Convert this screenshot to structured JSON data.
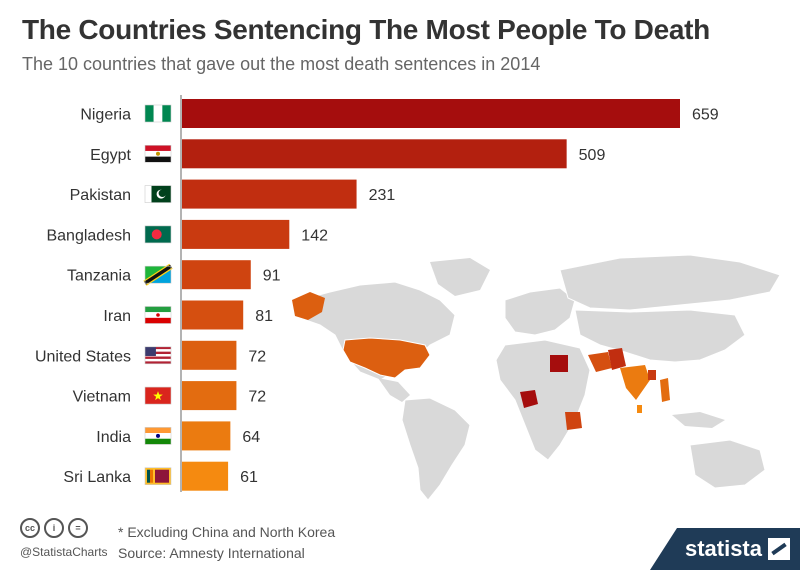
{
  "header": {
    "title": "The Countries Sentencing The Most People To Death",
    "subtitle": "The 10 countries that gave out the most death sentences in 2014"
  },
  "chart_data": {
    "type": "bar",
    "orientation": "horizontal",
    "title": "The Countries Sentencing The Most People To Death",
    "subtitle": "The 10 countries that gave out the most death sentences in 2014",
    "categories": [
      "Nigeria",
      "Egypt",
      "Pakistan",
      "Bangladesh",
      "Tanzania",
      "Iran",
      "United States",
      "Vietnam",
      "India",
      "Sri Lanka"
    ],
    "values": [
      659,
      509,
      231,
      142,
      91,
      81,
      72,
      72,
      64,
      61
    ],
    "colors": [
      "#a50d0d",
      "#b3200f",
      "#c12e10",
      "#c93a10",
      "#cf4410",
      "#d54f10",
      "#dc5f10",
      "#e36c10",
      "#eb7b10",
      "#f58a10"
    ],
    "xlabel": "",
    "ylabel": "",
    "xlim": [
      0,
      659
    ]
  },
  "flags": [
    "nigeria-flag-icon",
    "egypt-flag-icon",
    "pakistan-flag-icon",
    "bangladesh-flag-icon",
    "tanzania-flag-icon",
    "iran-flag-icon",
    "united-states-flag-icon",
    "vietnam-flag-icon",
    "india-flag-icon",
    "sri-lanka-flag-icon"
  ],
  "footer": {
    "note": "* Excluding China and North Korea",
    "source": "Source: Amnesty International",
    "handle": "@StatistaCharts",
    "brand": "statista"
  }
}
